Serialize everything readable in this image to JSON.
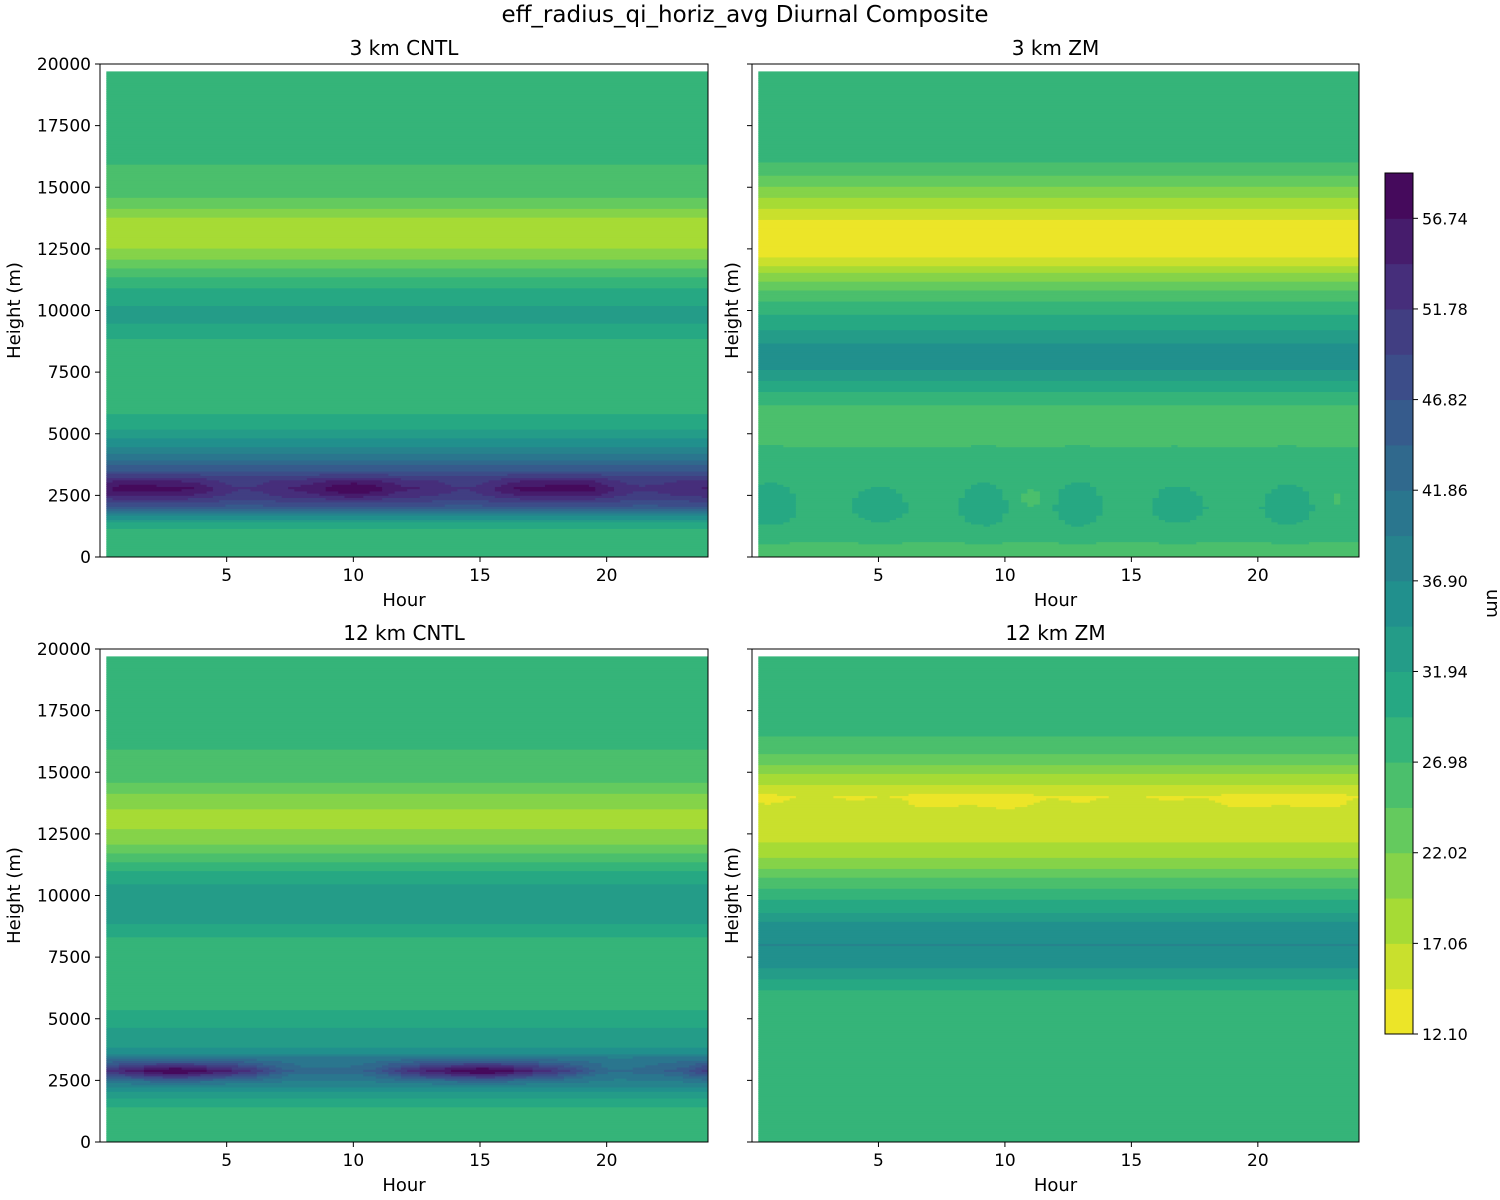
{
  "figure": {
    "title": "eff_radius_qi_horiz_avg Diurnal Composite"
  },
  "chart_data": [
    {
      "type": "heatmap",
      "title": "3 km CNTL",
      "xlabel": "Hour",
      "ylabel": "Height (m)",
      "xlim": [
        0,
        24
      ],
      "ylim": [
        0,
        20000
      ],
      "xticks": [
        5,
        10,
        15,
        20
      ],
      "yticks": [
        0,
        2500,
        5000,
        7500,
        10000,
        12500,
        15000,
        17500,
        20000
      ],
      "show_ytick_labels": true,
      "profile": [
        [
          0,
          27.5
        ],
        [
          500,
          27.8
        ],
        [
          1100,
          29
        ],
        [
          1500,
          33
        ],
        [
          1800,
          40
        ],
        [
          2100,
          47
        ],
        [
          2500,
          53
        ],
        [
          2800,
          55.5
        ],
        [
          3100,
          53
        ],
        [
          3500,
          47
        ],
        [
          4000,
          41
        ],
        [
          4500,
          36.5
        ],
        [
          5000,
          33
        ],
        [
          5500,
          30.5
        ],
        [
          6000,
          29
        ],
        [
          6500,
          27.2
        ],
        [
          7500,
          27
        ],
        [
          8500,
          27.5
        ],
        [
          9000,
          30
        ],
        [
          9500,
          32
        ],
        [
          10000,
          32.3
        ],
        [
          10500,
          31.5
        ],
        [
          11000,
          29
        ],
        [
          11500,
          26
        ],
        [
          12000,
          22.5
        ],
        [
          12500,
          19.5
        ],
        [
          13000,
          17.5
        ],
        [
          13500,
          18
        ],
        [
          14000,
          21
        ],
        [
          14500,
          24
        ],
        [
          15000,
          26.5
        ],
        [
          16000,
          27
        ],
        [
          19700,
          27
        ]
      ],
      "diurnal_feature": {
        "center": 2800,
        "width": 450,
        "amplitude": 3,
        "period_hours": 8
      }
    },
    {
      "type": "heatmap",
      "title": "3 km ZM",
      "xlabel": "Hour",
      "ylabel": "Height (m)",
      "xlim": [
        0,
        24
      ],
      "ylim": [
        0,
        20000
      ],
      "xticks": [
        5,
        10,
        15,
        20
      ],
      "yticks": [
        0,
        2500,
        5000,
        7500,
        10000,
        12500,
        15000,
        17500,
        20000
      ],
      "show_ytick_labels": false,
      "profile": [
        [
          0,
          25.5
        ],
        [
          600,
          27
        ],
        [
          1200,
          28.5
        ],
        [
          2000,
          29.5
        ],
        [
          3000,
          28.5
        ],
        [
          4000,
          27.5
        ],
        [
          5000,
          26.5
        ],
        [
          5800,
          26
        ],
        [
          6500,
          28
        ],
        [
          7000,
          31
        ],
        [
          7500,
          34
        ],
        [
          8000,
          35.5
        ],
        [
          8500,
          35
        ],
        [
          9000,
          33
        ],
        [
          9500,
          31
        ],
        [
          10000,
          29
        ],
        [
          10500,
          26.5
        ],
        [
          11000,
          23.5
        ],
        [
          11500,
          20
        ],
        [
          12000,
          15.5
        ],
        [
          12500,
          13.2
        ],
        [
          13000,
          13
        ],
        [
          13500,
          13.5
        ],
        [
          14000,
          16
        ],
        [
          14500,
          19
        ],
        [
          15000,
          22
        ],
        [
          15500,
          24.5
        ],
        [
          16000,
          27
        ],
        [
          19700,
          27
        ]
      ],
      "diurnal_feature": {
        "center": 2200,
        "width": 900,
        "amplitude": 2,
        "period_hours": 4
      }
    },
    {
      "type": "heatmap",
      "title": "12 km CNTL",
      "xlabel": "Hour",
      "ylabel": "Height (m)",
      "xlim": [
        0,
        24
      ],
      "ylim": [
        0,
        20000
      ],
      "xticks": [
        5,
        10,
        15,
        20
      ],
      "yticks": [
        0,
        2500,
        5000,
        7500,
        10000,
        12500,
        15000,
        17500,
        20000
      ],
      "show_ytick_labels": true,
      "profile": [
        [
          0,
          27
        ],
        [
          1000,
          27.5
        ],
        [
          1500,
          30
        ],
        [
          2000,
          33
        ],
        [
          2500,
          41
        ],
        [
          2900,
          51
        ],
        [
          3300,
          43
        ],
        [
          3700,
          35
        ],
        [
          4200,
          33
        ],
        [
          4800,
          31.5
        ],
        [
          5200,
          30
        ],
        [
          5700,
          28
        ],
        [
          6500,
          27
        ],
        [
          8000,
          27.5
        ],
        [
          8500,
          30.5
        ],
        [
          9000,
          32.5
        ],
        [
          9500,
          33
        ],
        [
          10000,
          33
        ],
        [
          10500,
          32
        ],
        [
          11000,
          29.5
        ],
        [
          11500,
          26
        ],
        [
          12000,
          22.5
        ],
        [
          12500,
          20
        ],
        [
          13000,
          19
        ],
        [
          13500,
          19.5
        ],
        [
          14000,
          21.5
        ],
        [
          14500,
          24
        ],
        [
          15000,
          26.5
        ],
        [
          16000,
          27
        ],
        [
          19700,
          27
        ]
      ],
      "diurnal_feature": {
        "center": 2900,
        "width": 350,
        "amplitude": 8,
        "period_hours": 12
      }
    },
    {
      "type": "heatmap",
      "title": "12 km ZM",
      "xlabel": "Hour",
      "ylabel": "Height (m)",
      "xlim": [
        0,
        24
      ],
      "ylim": [
        0,
        20000
      ],
      "xticks": [
        5,
        10,
        15,
        20
      ],
      "yticks": [
        0,
        2500,
        5000,
        7500,
        10000,
        12500,
        15000,
        17500,
        20000
      ],
      "show_ytick_labels": false,
      "profile": [
        [
          0,
          27
        ],
        [
          5500,
          27
        ],
        [
          6000,
          28.5
        ],
        [
          6500,
          31
        ],
        [
          7000,
          34
        ],
        [
          7500,
          36
        ],
        [
          8000,
          37
        ],
        [
          8500,
          36.5
        ],
        [
          9000,
          34
        ],
        [
          9500,
          31
        ],
        [
          10000,
          28.5
        ],
        [
          10500,
          26
        ],
        [
          11000,
          22.5
        ],
        [
          11500,
          20
        ],
        [
          12000,
          17.5
        ],
        [
          12500,
          16.5
        ],
        [
          13000,
          16.5
        ],
        [
          13500,
          15.5
        ],
        [
          14000,
          14
        ],
        [
          14500,
          17
        ],
        [
          15000,
          20
        ],
        [
          15500,
          23
        ],
        [
          16000,
          26
        ],
        [
          16500,
          27
        ],
        [
          19700,
          27
        ]
      ],
      "diurnal_feature": {
        "center": 13800,
        "width": 300,
        "amplitude": 1,
        "period_hours": 12
      }
    }
  ],
  "colorbar": {
    "label": "um",
    "min": 12.1,
    "max": 59.22,
    "levels": 19,
    "ticks": [
      "12.10",
      "17.06",
      "22.02",
      "26.98",
      "31.94",
      "36.90",
      "41.86",
      "46.82",
      "51.78",
      "56.74"
    ],
    "tick_values": [
      12.1,
      17.06,
      22.02,
      26.98,
      31.94,
      36.9,
      41.86,
      46.82,
      51.78,
      56.74
    ],
    "colormap": "viridis_r"
  }
}
